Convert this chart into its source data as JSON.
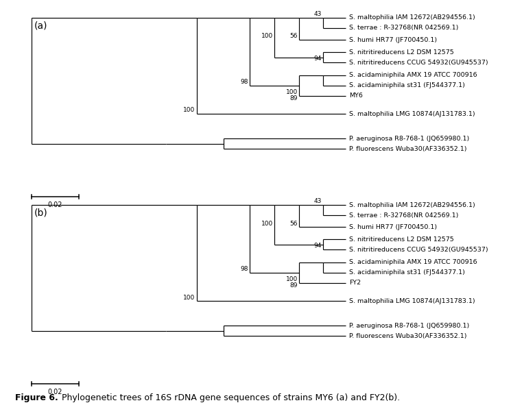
{
  "panel_a_label": "(a)",
  "panel_b_label": "(b)",
  "scale_bar_value": "0.02",
  "taxa_a": [
    "S. maltophilia IAM 12672(AB294556.1)",
    "S. terrae : R-32768(NR 042569.1)",
    "S. humi HR77 (JF700450.1)",
    "S. nitritireducens L2 DSM 12575",
    "S. nitritireducens CCUG 54932(GU945537)",
    "S. acidaminiphila AMX 19 ATCC 700916",
    "S. acidaminiphila st31 (FJ544377.1)",
    "MY6",
    "S. maltophilia LMG 10874(AJ131783.1)",
    "P. aeruginosa R8-768-1 (JQ659980.1)",
    "P. fluorescens Wuba30(AF336352.1)"
  ],
  "taxa_b": [
    "S. maltophilia IAM 12672(AB294556.1)",
    "S. terrae : R-32768(NR 042569.1)",
    "S. humi HR77 (JF700450.1)",
    "S. nitritireducens L2 DSM 12575",
    "S. nitritireducens CCUG 54932(GU945537)",
    "S. acidaminiphila AMX 19 ATCC 700916",
    "S. acidaminiphila st31 (FJ544377.1)",
    "FY2",
    "S. maltophilia LMG 10874(AJ131783.1)",
    "P. aeruginosa R8-768-1 (JQ659980.1)",
    "P. fluorescens Wuba30(AF336352.1)"
  ],
  "line_color": "#000000",
  "bg_color": "#ffffff",
  "font_size": 6.8,
  "bs_font_size": 6.5,
  "panel_font_size": 10,
  "scalebar_font_size": 7.0,
  "fig_caption_bold": "Figure 6.",
  "fig_caption_normal": " Phylogenetic trees of 16S rDNA gene sequences of strains MY6 (a) and FY2(b).",
  "fig_caption_font_size": 9
}
